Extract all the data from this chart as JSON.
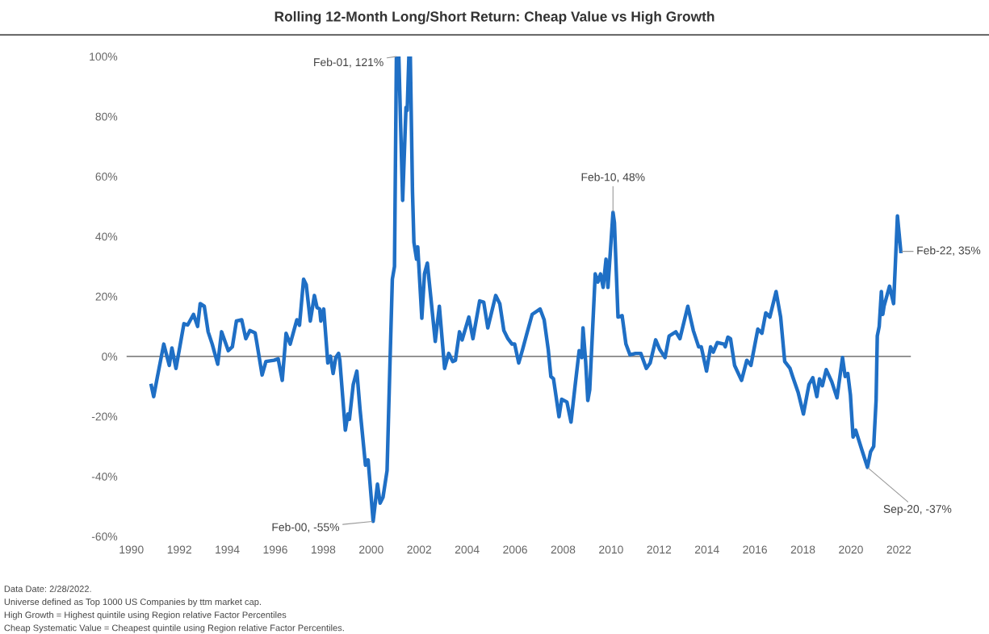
{
  "chart_data": {
    "type": "line",
    "title": "Rolling 12-Month Long/Short Return: Cheap Value vs High Growth",
    "x": [
      1990.83,
      1990.93,
      1991.08,
      1991.35,
      1991.58,
      1991.69,
      1991.86,
      1992.19,
      1992.35,
      1992.59,
      1992.76,
      1992.87,
      1993.04,
      1993.2,
      1993.37,
      1993.6,
      1993.76,
      1994.04,
      1994.21,
      1994.38,
      1994.6,
      1994.77,
      1994.94,
      1995.16,
      1995.22,
      1995.45,
      1995.61,
      1995.95,
      1996.12,
      1996.29,
      1996.45,
      1996.62,
      1996.9,
      1997.01,
      1997.18,
      1997.29,
      1997.46,
      1997.63,
      1997.74,
      1997.85,
      1997.9,
      1998.02,
      1998.19,
      1998.3,
      1998.41,
      1998.52,
      1998.64,
      1998.69,
      1998.92,
      1999.03,
      1999.09,
      1999.25,
      1999.4,
      1999.53,
      1999.76,
      1999.87,
      2000.08,
      2000.26,
      2000.37,
      2000.49,
      2000.66,
      2000.77,
      2000.88,
      2000.97,
      2001.05,
      2001.15,
      2001.31,
      2001.45,
      2001.5,
      2001.57,
      2001.63,
      2001.72,
      2001.78,
      2001.89,
      2001.94,
      2002.11,
      2002.22,
      2002.34,
      2002.67,
      2002.84,
      2003.06,
      2003.23,
      2003.4,
      2003.51,
      2003.68,
      2003.79,
      2004.07,
      2004.24,
      2004.52,
      2004.69,
      2004.86,
      2005.19,
      2005.36,
      2005.53,
      2005.7,
      2005.87,
      2005.98,
      2006.15,
      2006.31,
      2006.48,
      2006.71,
      2007.04,
      2007.21,
      2007.38,
      2007.49,
      2007.6,
      2007.83,
      2007.94,
      2008.16,
      2008.33,
      2008.5,
      2008.67,
      2008.78,
      2008.83,
      2008.94,
      2009.03,
      2009.11,
      2009.34,
      2009.45,
      2009.56,
      2009.67,
      2009.79,
      2009.87,
      2010.08,
      2010.14,
      2010.29,
      2010.46,
      2010.62,
      2010.79,
      2011.02,
      2011.24,
      2011.47,
      2011.63,
      2011.86,
      2012.03,
      2012.25,
      2012.42,
      2012.7,
      2012.87,
      2013.2,
      2013.43,
      2013.65,
      2013.76,
      2013.98,
      2014.15,
      2014.26,
      2014.43,
      2014.71,
      2014.76,
      2014.87,
      2014.98,
      2015.15,
      2015.44,
      2015.66,
      2015.83,
      2016.12,
      2016.29,
      2016.45,
      2016.62,
      2016.88,
      2017.07,
      2017.24,
      2017.46,
      2017.57,
      2017.8,
      2018.02,
      2018.25,
      2018.41,
      2018.58,
      2018.69,
      2018.81,
      2018.97,
      2019.2,
      2019.42,
      2019.65,
      2019.76,
      2019.87,
      2019.98,
      2020.09,
      2020.2,
      2020.43,
      2020.69,
      2020.82,
      2020.95,
      2021.05,
      2021.1,
      2021.18,
      2021.27,
      2021.33,
      2021.38,
      2021.61,
      2021.78,
      2021.85,
      2021.94,
      2022.08
    ],
    "series": [
      {
        "color": "#1f6fc5",
        "values": [
          -9.7,
          -13.4,
          -7,
          4.1,
          -3,
          2.8,
          -4,
          10.9,
          10.5,
          14,
          10,
          17.6,
          16.7,
          8.2,
          4.1,
          -2.6,
          8.2,
          1.9,
          3.2,
          11.8,
          12.2,
          5.9,
          8.6,
          7.8,
          5,
          -6.2,
          -1.7,
          -1.3,
          -0.8,
          -8,
          7.7,
          4.1,
          12.2,
          10.4,
          25.7,
          23.9,
          11.8,
          20.3,
          16.3,
          15.8,
          11.8,
          15.8,
          -2.2,
          0.1,
          -5.7,
          -0.4,
          1,
          -1.3,
          -24.6,
          -19.2,
          -21,
          -9.4,
          -4.9,
          -17.4,
          -36.3,
          -34.5,
          -55,
          -42.6,
          -48.9,
          -47,
          -38.1,
          -5.7,
          25.7,
          30,
          100,
          100,
          52,
          83,
          82,
          100,
          100,
          55,
          38,
          32.4,
          36.5,
          12.7,
          27.5,
          31.1,
          5,
          16.7,
          -4,
          1,
          -1.7,
          -1.3,
          8.2,
          5.5,
          13.1,
          5.9,
          18.5,
          18.1,
          9.5,
          20.3,
          17.6,
          8.6,
          5.9,
          4.1,
          4.1,
          -2.2,
          2.3,
          7.3,
          14,
          15.8,
          12.2,
          2.3,
          -6.7,
          -7.5,
          -20.1,
          -14.3,
          -15.2,
          -21.9,
          -9.8,
          1.9,
          -0.4,
          9.5,
          -1.7,
          -14.7,
          -11.1,
          27.5,
          24.8,
          27.5,
          23,
          32.4,
          23,
          48,
          44.6,
          13.1,
          13.6,
          4.1,
          0.5,
          1,
          1,
          -4,
          -2.2,
          5.5,
          2.3,
          -0.4,
          6.8,
          8.2,
          5.9,
          16.7,
          8.6,
          3.2,
          3.2,
          -4.9,
          3.2,
          1.4,
          4.6,
          4.1,
          3.2,
          6.4,
          5.9,
          -3,
          -8,
          -1.3,
          -3,
          9.1,
          7.7,
          14.5,
          13.1,
          21.6,
          13.1,
          -1.7,
          -4,
          -6.7,
          -12,
          -19.2,
          -9.4,
          -7.1,
          -13.4,
          -7.5,
          -9.8,
          -4.4,
          -8.4,
          -13.8,
          -0.4,
          -6.7,
          -5.7,
          -12.9,
          -26.9,
          -24.6,
          -30.5,
          -37,
          -31.8,
          -30,
          -14.7,
          6.8,
          10,
          21.6,
          14,
          16.7,
          23.4,
          17.6,
          30.2,
          46.8,
          35
        ]
      }
    ],
    "xlim": [
      1989.8,
      2022.5
    ],
    "xticks": [
      1990,
      1992,
      1994,
      1996,
      1998,
      2000,
      2002,
      2004,
      2006,
      2008,
      2010,
      2012,
      2014,
      2016,
      2018,
      2020,
      2022
    ],
    "ylim": [
      -60,
      100
    ],
    "yticks": [
      {
        "value": -60,
        "label": "-60%"
      },
      {
        "value": -40,
        "label": "-40%"
      },
      {
        "value": -20,
        "label": "-20%"
      },
      {
        "value": 0,
        "label": "0%"
      },
      {
        "value": 20,
        "label": "20%"
      },
      {
        "value": 40,
        "label": "40%"
      },
      {
        "value": 60,
        "label": "60%"
      },
      {
        "value": 80,
        "label": "80%"
      },
      {
        "value": 100,
        "label": "100%"
      }
    ],
    "ref_lines": [
      {
        "axis": "y",
        "value": 0,
        "color": "#555555"
      }
    ],
    "grid": false,
    "legend": false,
    "marker": "none",
    "line_style": "solid",
    "annotations": [
      {
        "text": "Feb-01, 121%",
        "x": 2001.08,
        "y": 100
      },
      {
        "text": "Feb-00, -55%",
        "x": 2000.08,
        "y": -55
      },
      {
        "text": "Feb-10, 48%",
        "x": 2010.08,
        "y": 48
      },
      {
        "text": "Sep-20, -37%",
        "x": 2020.69,
        "y": -37
      },
      {
        "text": "Feb-22, 35%",
        "x": 2022.08,
        "y": 35
      },
      "Data Date: 2/28/2022.",
      "Universe defined as Top 1000 US Companies by ttm market cap.",
      "High Growth = Highest quintile using Region relative Factor Percentiles",
      "Cheap Systematic Value = Cheapest quintile using Region relative Factor Percentiles."
    ]
  }
}
